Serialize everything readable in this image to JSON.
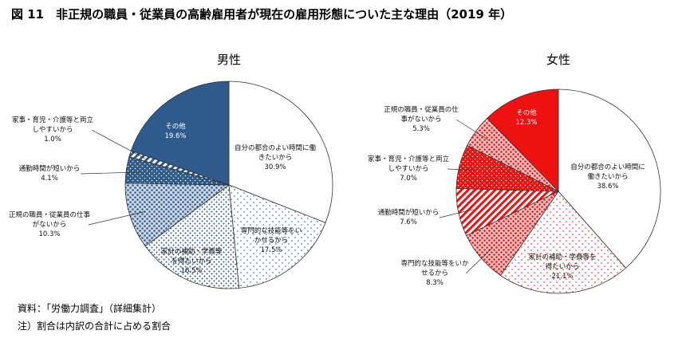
{
  "title": "図 11　非正規の職員・従業員の高齢雇用者が現在の雇用形態についた主な理由（2019 年）",
  "notes": [
    "資料：「労働力調査」（詳細集計）",
    "注）割合は内訳の合計に占める割合"
  ],
  "chart_data": [
    {
      "type": "pie",
      "title": "男性",
      "color": "#2e5a8c",
      "categories": [
        "自分の都合のよい時間に働きたいから",
        "専門的な技能等をいかせるから",
        "家計の補助・学費等を得たいから",
        "正規の職員・従業員の仕事がないから",
        "通勤時間が短いから",
        "家事・育児・介護等と両立しやすいから",
        "その他"
      ],
      "values": [
        30.9,
        17.5,
        16.5,
        10.3,
        4.1,
        1.0,
        19.6
      ],
      "value_labels": [
        "30.9%",
        "17.5%",
        "16.5%",
        "10.3%",
        "4.1%",
        "1.0%",
        "19.6%"
      ],
      "patterns": [
        "none",
        "sparse-dots",
        "dots",
        "dense-dots",
        "dots-on-color",
        "stripes",
        "solid"
      ]
    },
    {
      "type": "pie",
      "title": "女性",
      "color": "#ee1111",
      "categories": [
        "自分の都合のよい時間に働きたいから",
        "家計の補助・学費等を得たいから",
        "専門的な技能等をいかせるから",
        "通勤時間が短いから",
        "家事・育児・介護等と両立しやすいから",
        "正規の職員・従業員の仕事がないから",
        "その他"
      ],
      "values": [
        38.6,
        21.1,
        8.3,
        7.6,
        7.0,
        5.3,
        12.3
      ],
      "value_labels": [
        "38.6%",
        "21.1%",
        "8.3%",
        "7.6%",
        "7.0%",
        "5.3%",
        "12.3%"
      ],
      "patterns": [
        "none",
        "sparse-dots",
        "dense-dots",
        "stripes",
        "dots-on-color",
        "dense-dots",
        "solid"
      ]
    }
  ]
}
